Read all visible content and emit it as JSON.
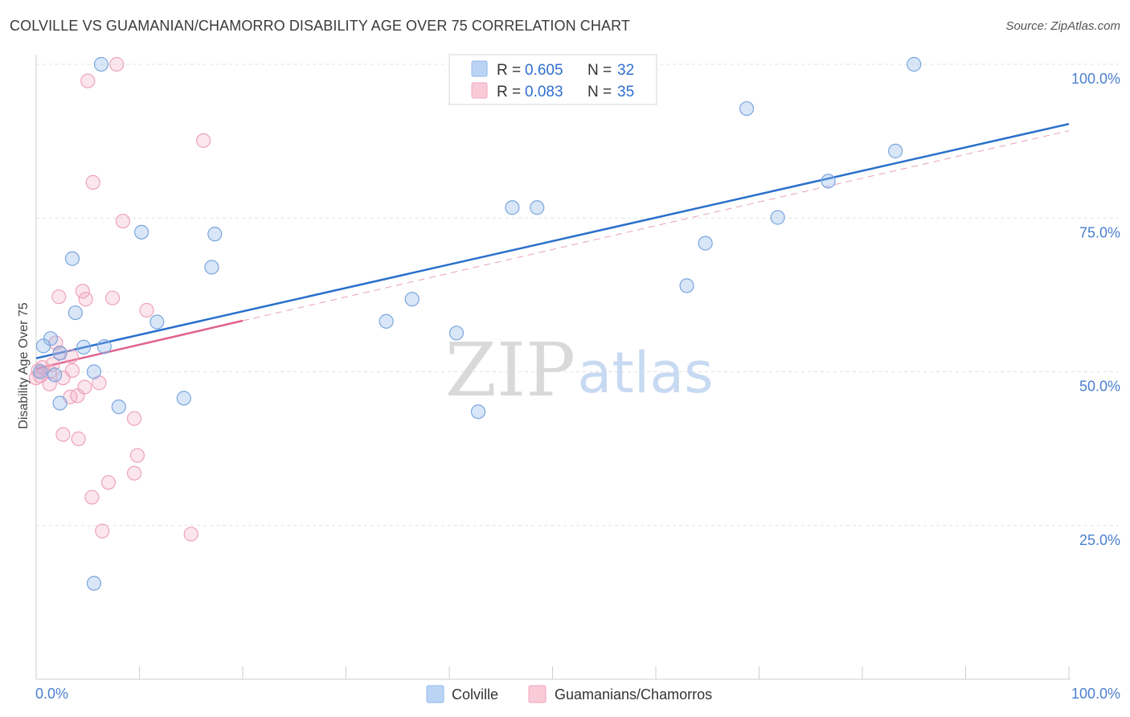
{
  "header": {
    "title": "COLVILLE VS GUAMANIAN/CHAMORRO DISABILITY AGE OVER 75 CORRELATION CHART",
    "source": "Source: ZipAtlas.com"
  },
  "legend": {
    "r_label": "R =",
    "n_label": "N =",
    "series": [
      {
        "r": "0.605",
        "n": "32"
      },
      {
        "r": "0.083",
        "n": "35"
      }
    ]
  },
  "watermark": {
    "zip": "ZIP",
    "atlas": "atlas"
  },
  "chart_data": {
    "type": "scatter",
    "title": "COLVILLE VS GUAMANIAN/CHAMORRO DISABILITY AGE OVER 75 CORRELATION CHART",
    "xlabel": "",
    "ylabel": "Disability Age Over 75",
    "xlim": [
      0,
      100
    ],
    "ylim": [
      0,
      100
    ],
    "x_tick_labels": [
      "0.0%",
      "100.0%"
    ],
    "y_ticks": [
      25,
      50,
      75,
      100
    ],
    "y_tick_labels": [
      "25.0%",
      "50.0%",
      "75.0%",
      "100.0%"
    ],
    "grid": true,
    "colors": {
      "colville": "#8fb8ec",
      "guam": "#f2a6bd",
      "colville_line": "#2a6fcc",
      "guam_line": "#e0628e"
    },
    "series": [
      {
        "name": "Colville",
        "points": [
          [
            6.3,
            100.0
          ],
          [
            85.0,
            100.0
          ],
          [
            68.8,
            92.8
          ],
          [
            83.2,
            85.9
          ],
          [
            76.7,
            81.0
          ],
          [
            46.1,
            76.7
          ],
          [
            48.5,
            76.7
          ],
          [
            71.8,
            75.1
          ],
          [
            10.2,
            72.7
          ],
          [
            17.3,
            72.4
          ],
          [
            64.8,
            70.9
          ],
          [
            3.5,
            68.4
          ],
          [
            17.0,
            67.0
          ],
          [
            63.0,
            64.0
          ],
          [
            36.4,
            61.8
          ],
          [
            3.8,
            59.6
          ],
          [
            11.7,
            58.1
          ],
          [
            33.9,
            58.2
          ],
          [
            40.7,
            56.3
          ],
          [
            1.4,
            55.4
          ],
          [
            0.7,
            54.2
          ],
          [
            6.6,
            54.1
          ],
          [
            4.6,
            54.0
          ],
          [
            2.3,
            53.0
          ],
          [
            5.6,
            50.0
          ],
          [
            1.8,
            49.5
          ],
          [
            2.3,
            44.9
          ],
          [
            8.0,
            44.3
          ],
          [
            14.3,
            45.7
          ],
          [
            42.8,
            43.5
          ],
          [
            5.6,
            15.6
          ],
          [
            0.4,
            50.0
          ]
        ],
        "trend": {
          "x": [
            0,
            100
          ],
          "y": [
            52.2,
            90.3
          ],
          "style": "solid"
        }
      },
      {
        "name": "Guamanians/Chamorros",
        "points": [
          [
            7.8,
            100.0
          ],
          [
            5.0,
            97.3
          ],
          [
            16.2,
            87.6
          ],
          [
            5.5,
            80.8
          ],
          [
            8.4,
            74.5
          ],
          [
            4.5,
            63.1
          ],
          [
            2.2,
            62.2
          ],
          [
            4.8,
            61.8
          ],
          [
            7.4,
            62.0
          ],
          [
            10.7,
            60.0
          ],
          [
            1.9,
            54.7
          ],
          [
            2.3,
            53.1
          ],
          [
            3.4,
            52.5
          ],
          [
            1.6,
            51.2
          ],
          [
            0.6,
            50.7
          ],
          [
            3.5,
            50.2
          ],
          [
            0.2,
            50.2
          ],
          [
            1.3,
            50.0
          ],
          [
            0.4,
            49.3
          ],
          [
            2.6,
            49.0
          ],
          [
            6.1,
            48.2
          ],
          [
            1.3,
            48.0
          ],
          [
            4.7,
            47.5
          ],
          [
            3.3,
            45.9
          ],
          [
            4.0,
            46.1
          ],
          [
            9.5,
            42.4
          ],
          [
            2.6,
            39.8
          ],
          [
            4.1,
            39.1
          ],
          [
            9.8,
            36.4
          ],
          [
            7.0,
            32.0
          ],
          [
            9.5,
            33.5
          ],
          [
            5.4,
            29.6
          ],
          [
            6.4,
            24.1
          ],
          [
            15.0,
            23.6
          ],
          [
            0.0,
            49.0
          ]
        ],
        "trend": {
          "x": [
            0,
            20
          ],
          "y": [
            50.5,
            58.3
          ],
          "style": "solid"
        },
        "trend_extension": {
          "x": [
            20,
            100
          ],
          "y": [
            58.3,
            89.2
          ],
          "style": "dashed"
        }
      }
    ],
    "bottom_legend": [
      "Colville",
      "Guamanians/Chamorros"
    ]
  }
}
